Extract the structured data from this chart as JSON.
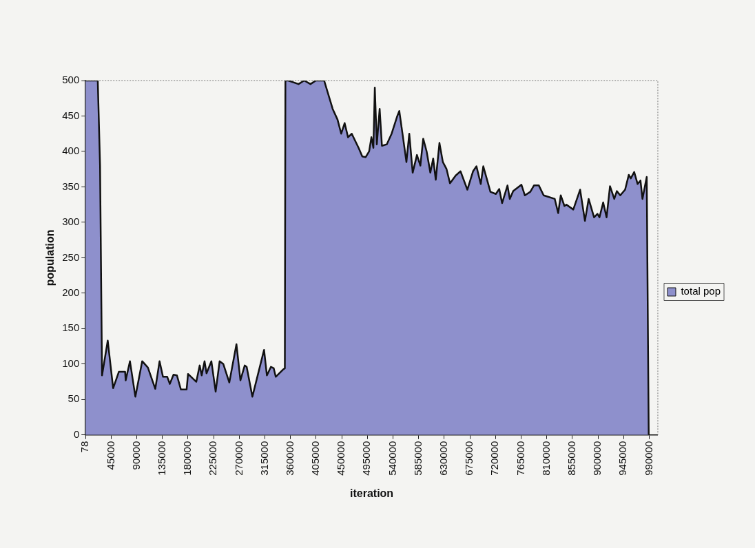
{
  "chart_data": {
    "type": "area",
    "xlabel": "iteration",
    "ylabel": "population",
    "xlim": [
      78,
      1005000
    ],
    "xticks": [
      78,
      45000,
      90000,
      135000,
      180000,
      225000,
      270000,
      315000,
      360000,
      405000,
      450000,
      495000,
      540000,
      585000,
      630000,
      675000,
      720000,
      765000,
      810000,
      855000,
      900000,
      945000,
      990000
    ],
    "ylim": [
      0,
      500
    ],
    "yticks": [
      0,
      50,
      100,
      150,
      200,
      250,
      300,
      350,
      400,
      450,
      500
    ],
    "grid": false,
    "legend": "right",
    "series": [
      {
        "name": "total pop",
        "color": "#8e90cc",
        "x": [
          78,
          18000,
          21500,
          25500,
          29000,
          39000,
          48500,
          58500,
          69500,
          70500,
          78000,
          87500,
          99500,
          109500,
          122500,
          130000,
          136000,
          143500,
          148000,
          154500,
          160500,
          167500,
          177500,
          180000,
          194500,
          200500,
          204000,
          209000,
          212500,
          221000,
          228500,
          235500,
          242000,
          252500,
          265000,
          272000,
          279500,
          283000,
          293000,
          313500,
          318500,
          325500,
          330500,
          334000,
          346500,
          350000,
          351000,
          356000,
          374000,
          384000,
          395000,
          404500,
          419000,
          434000,
          442500,
          449000,
          455000,
          461000,
          467500,
          473500,
          479500,
          486000,
          492000,
          498000,
          502000,
          505500,
          508000,
          511500,
          516500,
          520500,
          529000,
          537500,
          547500,
          551000,
          557500,
          563500,
          568500,
          574500,
          582000,
          588000,
          593000,
          599000,
          605500,
          610500,
          615000,
          621500,
          627500,
          634000,
          640000,
          650000,
          658500,
          670500,
          680500,
          686500,
          694000,
          698500,
          711000,
          720500,
          726500,
          731500,
          741000,
          745000,
          751000,
          765500,
          771500,
          781000,
          787500,
          796000,
          804500,
          824000,
          830000,
          834500,
          841000,
          844500,
          856500,
          868500,
          877000,
          883500,
          893000,
          899000,
          902500,
          909000,
          915000,
          921000,
          928500,
          933000,
          939000,
          947500,
          954000,
          957500,
          963500,
          969500,
          974500,
          978000,
          985500,
          989000
        ],
        "values": [
          500,
          500,
          500,
          380,
          84,
          133,
          66,
          89,
          89,
          77,
          104,
          54,
          104,
          95,
          65,
          104,
          82,
          82,
          72,
          85,
          84,
          64,
          64,
          86,
          75,
          98,
          84,
          104,
          87,
          104,
          61,
          104,
          100,
          74,
          128,
          77,
          98,
          96,
          54,
          120,
          84,
          96,
          94,
          82,
          92,
          94,
          500,
          500,
          495,
          500,
          495,
          500,
          500,
          460,
          445,
          425,
          440,
          420,
          425,
          415,
          405,
          393,
          392,
          400,
          420,
          405,
          490,
          410,
          460,
          408,
          410,
          425,
          450,
          457,
          420,
          385,
          425,
          370,
          395,
          380,
          418,
          400,
          370,
          390,
          360,
          412,
          385,
          375,
          355,
          366,
          372,
          346,
          372,
          379,
          354,
          379,
          343,
          340,
          347,
          327,
          352,
          333,
          344,
          353,
          338,
          343,
          352,
          352,
          338,
          333,
          313,
          338,
          323,
          325,
          318,
          346,
          302,
          333,
          307,
          312,
          307,
          328,
          307,
          351,
          333,
          344,
          338,
          346,
          367,
          362,
          371,
          354,
          359,
          333,
          364,
          0
        ]
      }
    ]
  }
}
